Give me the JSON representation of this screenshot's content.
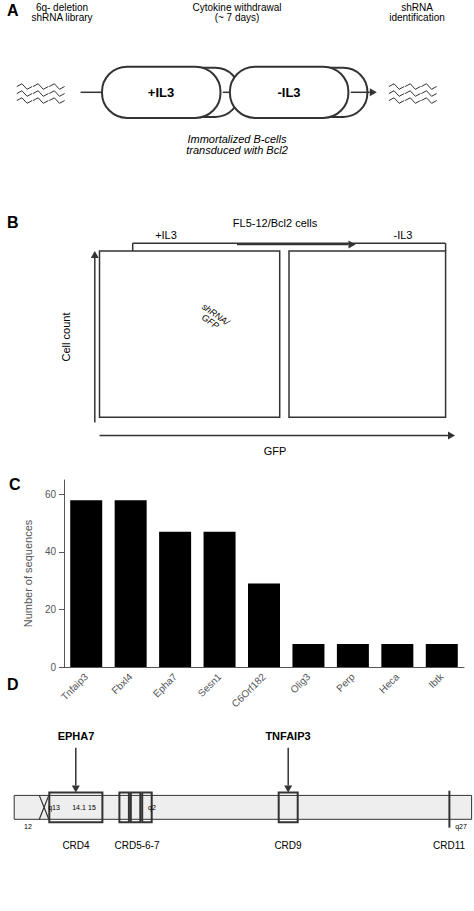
{
  "chart_data": {
    "type": "bar",
    "categories": [
      "Tnfaip3",
      "Fbxl4",
      "Epha7",
      "Sesn1",
      "C6Orf182",
      "Olig3",
      "Perp",
      "Heca",
      "Ibtk"
    ],
    "values": [
      58,
      58,
      47,
      47,
      29,
      8,
      8,
      8,
      8
    ],
    "color": "#000000",
    "ylabel": "Number of sequences",
    "ylim": [
      0,
      65
    ],
    "yticks": [
      0,
      20,
      40,
      60
    ],
    "grid": false,
    "annotations": [
      "A",
      "6q- deletion\nshRNA library",
      "Cytokine withdrawal\n(~ 7 days)",
      "shRNA\nidentification",
      "+IL3",
      "-IL3",
      "Immortalized B-cells\ntransduced with Bcl2",
      "B",
      "FL5-12/Bcl2 cells",
      "+IL3",
      "-IL3",
      "Cell count",
      "GFP",
      "shRNA/\nGFP",
      "C",
      "D",
      "12",
      "q13",
      "14.1",
      "15",
      "q2",
      "q27",
      "CRD4",
      "CRD5-6-7",
      "CRD9",
      "CRD11",
      "EPHA7",
      "TNFAIP3"
    ]
  }
}
